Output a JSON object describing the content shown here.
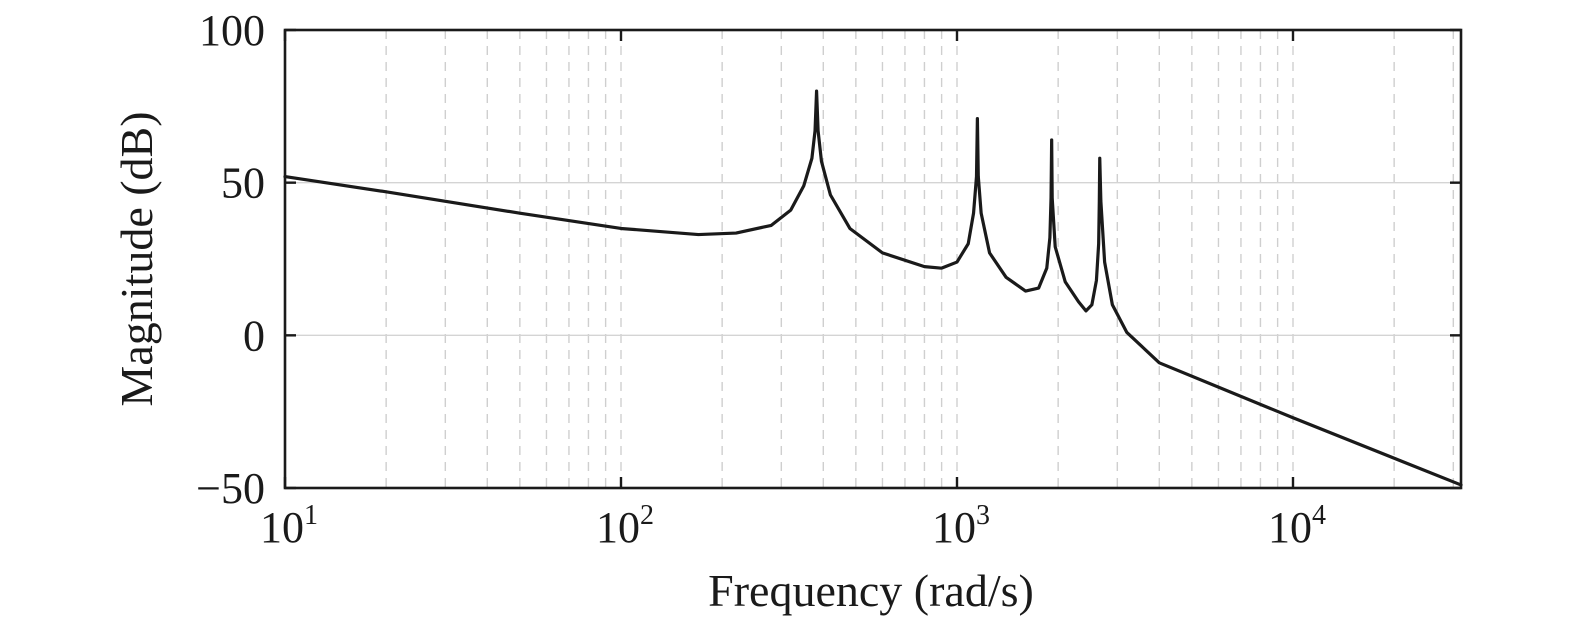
{
  "chart_data": {
    "type": "line",
    "xlabel": "Frequency (rad/s)",
    "ylabel": "Magnitude (dB)",
    "xscale": "log",
    "xlim": [
      10,
      31623
    ],
    "ylim": [
      -50,
      100
    ],
    "grid": true,
    "colors": {
      "line": "#1a1a1a",
      "axes": "#1a1a1a",
      "grid_major": "#d4d4d4",
      "grid_minor": "#cfcfcf"
    },
    "y_ticks": [
      {
        "value": -50,
        "label": "−50"
      },
      {
        "value": 0,
        "label": "0"
      },
      {
        "value": 50,
        "label": "50"
      },
      {
        "value": 100,
        "label": "100"
      }
    ],
    "x_ticks": [
      {
        "value": 10,
        "base": "10",
        "exp": "1"
      },
      {
        "value": 100,
        "base": "10",
        "exp": "2"
      },
      {
        "value": 1000,
        "base": "10",
        "exp": "3"
      },
      {
        "value": 10000,
        "base": "10",
        "exp": "4"
      }
    ],
    "series": [
      {
        "x": [
          10,
          20,
          50,
          100,
          170,
          220,
          280,
          320,
          350,
          370,
          378,
          382,
          386,
          395,
          420,
          480,
          600,
          800,
          900,
          1000,
          1080,
          1120,
          1143,
          1150,
          1157,
          1180,
          1250,
          1400,
          1600,
          1750,
          1850,
          1890,
          1905,
          1913,
          1920,
          1960,
          2100,
          2300,
          2420,
          2520,
          2600,
          2640,
          2652,
          2660,
          2680,
          2750,
          2900,
          3200,
          4000,
          10000,
          31623
        ],
        "y": [
          52,
          47,
          40,
          35,
          33,
          33.5,
          36,
          41,
          49,
          58,
          67,
          80,
          67,
          57,
          46,
          35,
          27,
          22.5,
          22,
          24,
          30,
          40,
          52,
          71,
          52,
          40,
          27,
          19,
          14.5,
          15.5,
          22,
          32,
          45,
          64,
          45,
          29,
          17.5,
          11,
          8,
          10,
          18,
          30,
          44,
          58,
          44,
          24,
          10,
          1,
          -9,
          -27,
          -49
        ]
      }
    ]
  }
}
